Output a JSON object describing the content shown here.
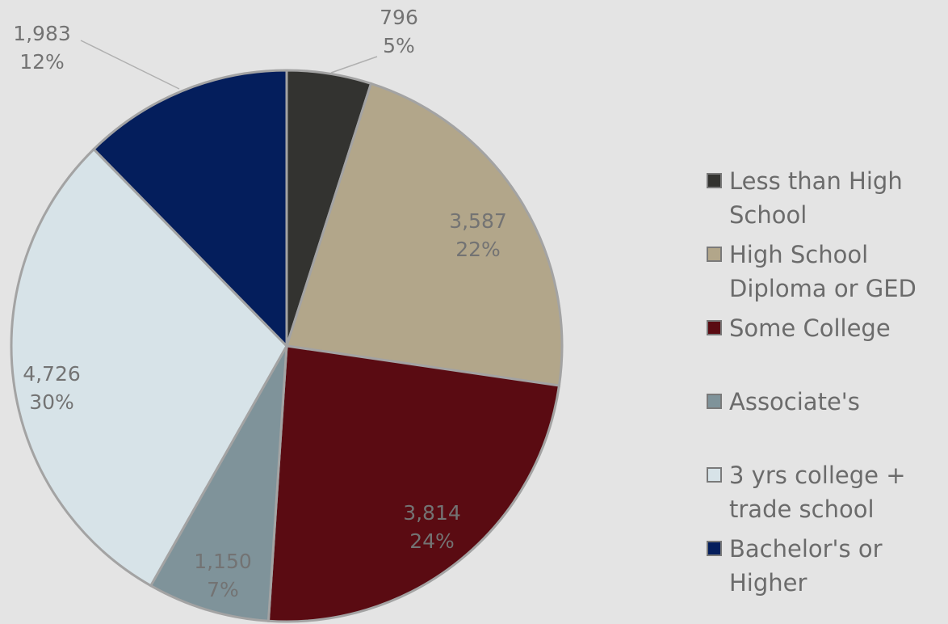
{
  "chart_data": {
    "type": "pie",
    "categories": [
      "Less than High School",
      "High School Diploma or GED",
      "Some College",
      "Associate's",
      "3 yrs college + trade school",
      "Bachelor's or Higher"
    ],
    "values": [
      796,
      3587,
      3814,
      1150,
      4726,
      1983
    ],
    "value_labels": [
      "796",
      "3,587",
      "3,814",
      "1,150",
      "4,726",
      "1,983"
    ],
    "percents": [
      5,
      22,
      24,
      7,
      30,
      12
    ],
    "percent_labels": [
      "5%",
      "22%",
      "24%",
      "7%",
      "30%",
      "12%"
    ],
    "colors": [
      "#333330",
      "#b2a68a",
      "#5a0b12",
      "#7f939a",
      "#d7e3e8",
      "#041e5c"
    ],
    "legend": "right"
  }
}
